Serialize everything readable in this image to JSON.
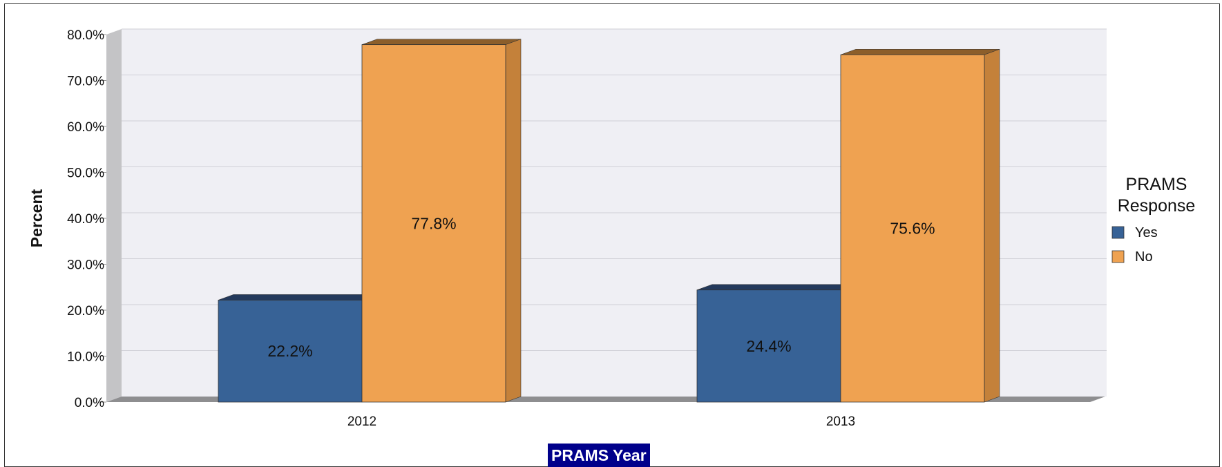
{
  "chart_data": {
    "type": "bar",
    "categories": [
      "2012",
      "2013"
    ],
    "series": [
      {
        "name": "Yes",
        "values": [
          22.2,
          24.4
        ],
        "labels": [
          "22.2%",
          "24.4%"
        ],
        "color": "#376296"
      },
      {
        "name": "No",
        "values": [
          77.8,
          75.6
        ],
        "labels": [
          "77.8%",
          "75.6%"
        ],
        "color": "#efa251"
      }
    ],
    "ylabel": "Percent",
    "xlabel": "PRAMS Year",
    "ylim": [
      0,
      80
    ],
    "yticks": [
      "0.0%",
      "10.0%",
      "20.0%",
      "30.0%",
      "40.0%",
      "50.0%",
      "60.0%",
      "70.0%",
      "80.0%"
    ],
    "legend_title": [
      "PRAMS",
      "Response"
    ],
    "legend_position": "right",
    "grid": true,
    "style": "3d"
  }
}
